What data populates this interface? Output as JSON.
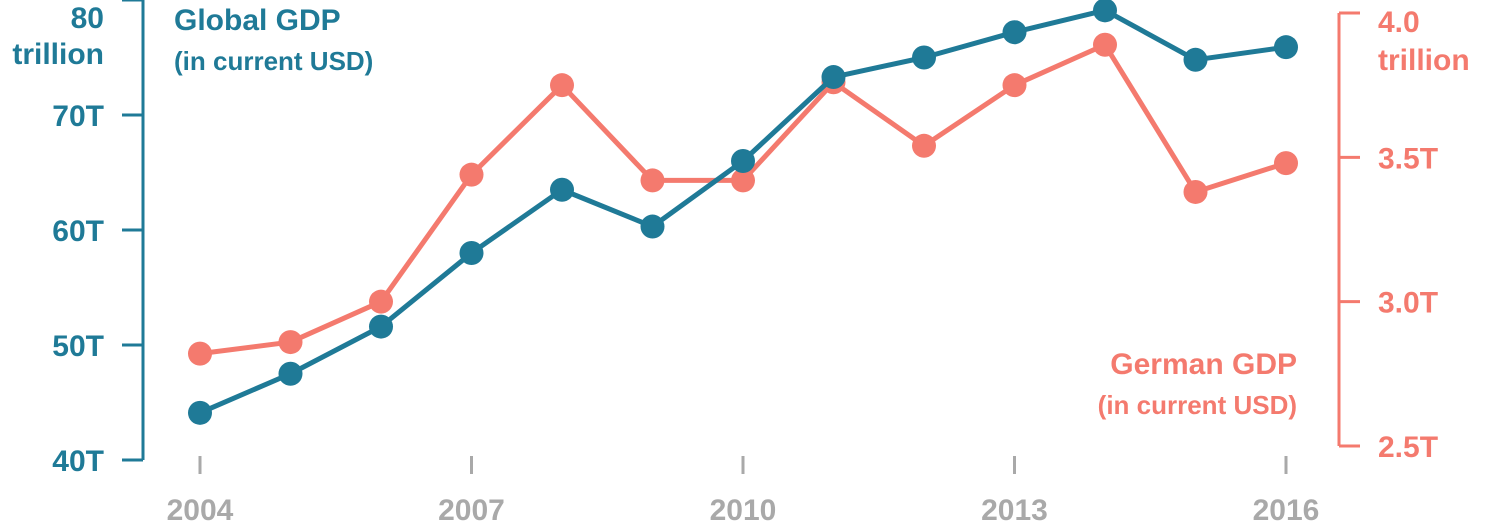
{
  "colors": {
    "global": "#1f7a97",
    "german": "#f47a6e",
    "x_axis": "#a9a9a9"
  },
  "chart_data": {
    "type": "line",
    "x": [
      2004,
      2005,
      2006,
      2007,
      2008,
      2009,
      2010,
      2011,
      2012,
      2013,
      2014,
      2015,
      2016
    ],
    "series": [
      {
        "name": "Global GDP",
        "subtitle": "(in current USD)",
        "axis": "left",
        "values": [
          44.1,
          47.5,
          51.6,
          58.0,
          63.5,
          60.3,
          66.0,
          73.3,
          75.0,
          77.2,
          79.1,
          74.8,
          75.9
        ]
      },
      {
        "name": "German GDP",
        "subtitle": "(in current USD)",
        "axis": "right",
        "values": [
          2.82,
          2.86,
          3.0,
          3.44,
          3.75,
          3.42,
          3.42,
          3.76,
          3.54,
          3.75,
          3.89,
          3.38,
          3.48
        ]
      }
    ],
    "x_ticks": [
      "2004",
      "2007",
      "2010",
      "2013",
      "2016"
    ],
    "y_left": {
      "ticks": [
        "40T",
        "50T",
        "60T",
        "70T"
      ],
      "top_value": "80",
      "top_unit": "trillion",
      "ylim": [
        40,
        80
      ]
    },
    "y_right": {
      "ticks": [
        "2.5T",
        "3.0T",
        "3.5T"
      ],
      "top_value": "4.0",
      "top_unit": "trillion",
      "ylim": [
        2.5,
        4.0
      ]
    },
    "xlim": [
      2004,
      2016
    ],
    "grid": false
  }
}
